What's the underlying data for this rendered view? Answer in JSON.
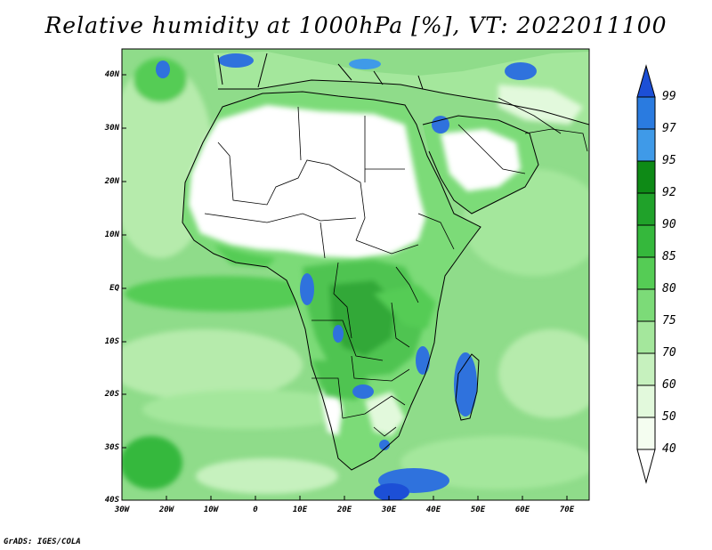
{
  "title": "Relative humidity at 1000hPa [%], VT: 2022011100",
  "footer": "GrADS: IGES/COLA",
  "axes": {
    "lat_labels": [
      "40N",
      "30N",
      "20N",
      "10N",
      "EQ",
      "10S",
      "20S",
      "30S",
      "40S"
    ],
    "lon_labels": [
      "30W",
      "20W",
      "10W",
      "0",
      "10E",
      "20E",
      "30E",
      "40E",
      "50E",
      "60E",
      "70E"
    ]
  },
  "colorbar": {
    "levels": [
      "99",
      "97",
      "95",
      "92",
      "90",
      "85",
      "80",
      "75",
      "70",
      "60",
      "50",
      "40"
    ],
    "colors": [
      "#1c4fd6",
      "#2a7be0",
      "#3f9ae8",
      "#0e8a16",
      "#20a22a",
      "#35b83c",
      "#55cc55",
      "#7cdb78",
      "#a4e79c",
      "#c6f1be",
      "#e2f9dc",
      "#f4fdf0"
    ]
  },
  "palette": {
    "ocean_base": "#8fdc8a",
    "ocean_light": "#b6ebac",
    "dry_land": "#ffffff",
    "moist_land": "#4fc451",
    "wet_land": "#30a838",
    "saturated": "#2f72dd"
  }
}
